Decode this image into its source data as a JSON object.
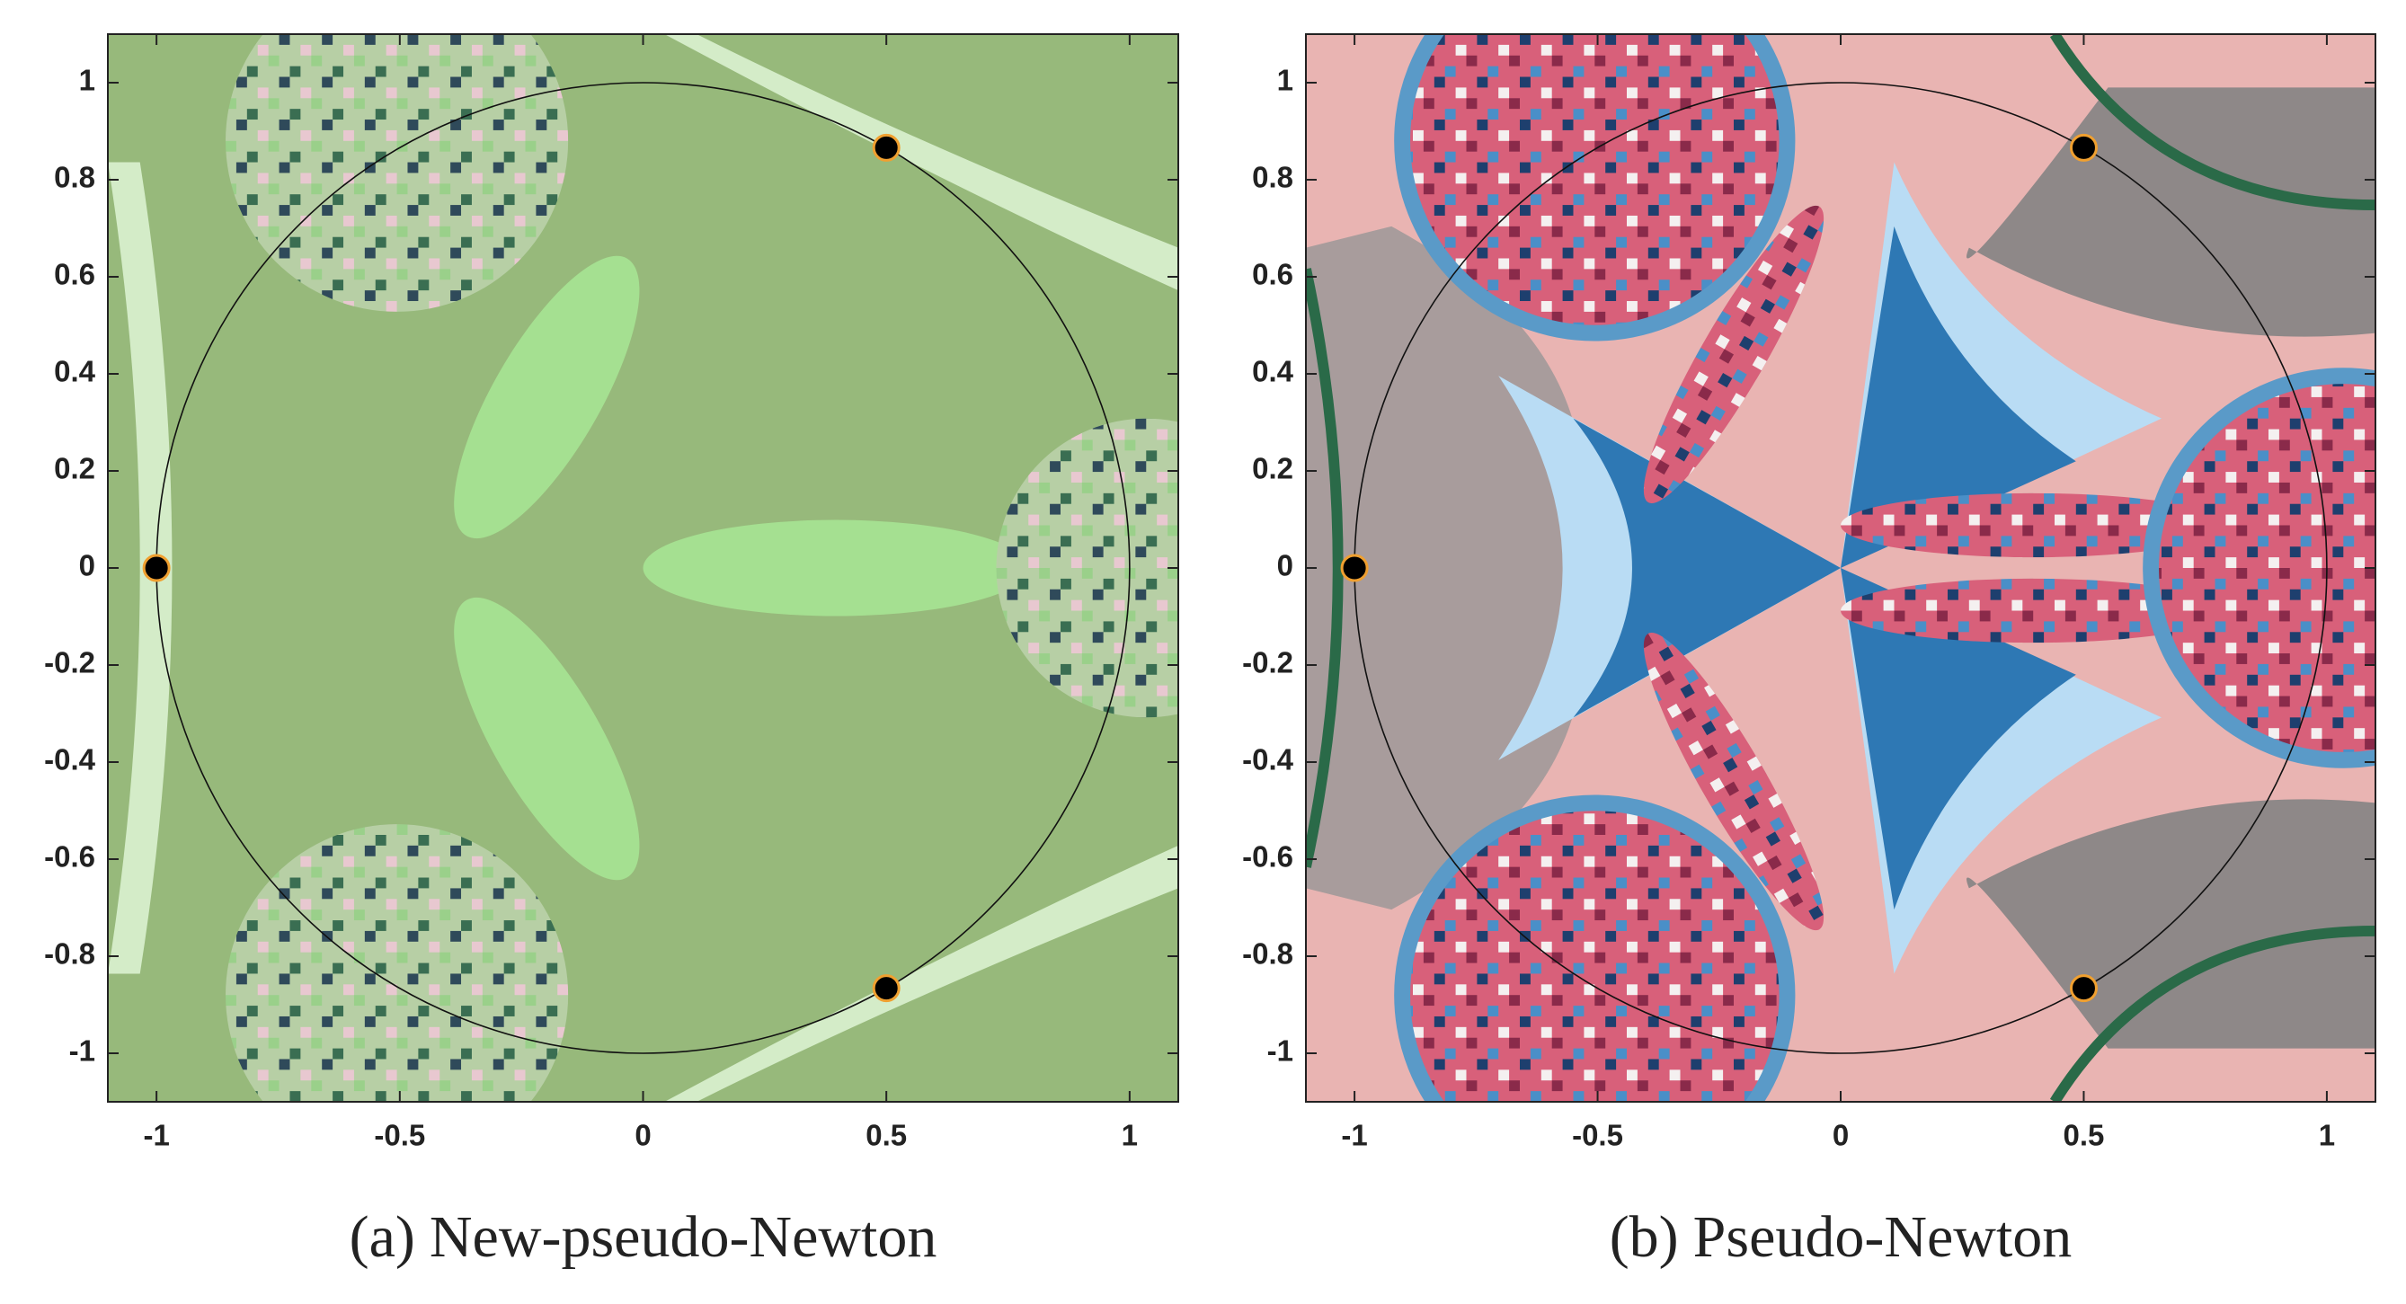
{
  "chart_data": [
    {
      "type": "scatter",
      "caption_label": "(a)",
      "caption": "New-pseudo-Newton",
      "x": [
        -1,
        0.5,
        0.5
      ],
      "values": [
        0,
        0.866,
        -0.866
      ],
      "color": "#000000",
      "edgecolor": "#f0a030",
      "xlim": [
        -1.1,
        1.1
      ],
      "ylim": [
        -1.1,
        1.1
      ],
      "xticks": [
        -1,
        -0.5,
        0,
        0.5,
        1
      ],
      "yticks": [
        -1,
        -0.8,
        -0.6,
        -0.4,
        -0.2,
        0,
        0.2,
        0.4,
        0.6,
        0.8,
        1
      ]
    },
    {
      "type": "scatter",
      "caption_label": "(b)",
      "caption": "Pseudo-Newton",
      "x": [
        -1,
        0.5,
        0.5
      ],
      "values": [
        0,
        0.866,
        -0.866
      ],
      "color": "#000000",
      "edgecolor": "#f0a030",
      "xlim": [
        -1.1,
        1.1
      ],
      "ylim": [
        -1.1,
        1.1
      ],
      "xticks": [
        -1,
        -0.5,
        0,
        0.5,
        1
      ],
      "yticks": [
        -1,
        -0.8,
        -0.6,
        -0.4,
        -0.2,
        0,
        0.2,
        0.4,
        0.6,
        0.8,
        1
      ]
    }
  ]
}
